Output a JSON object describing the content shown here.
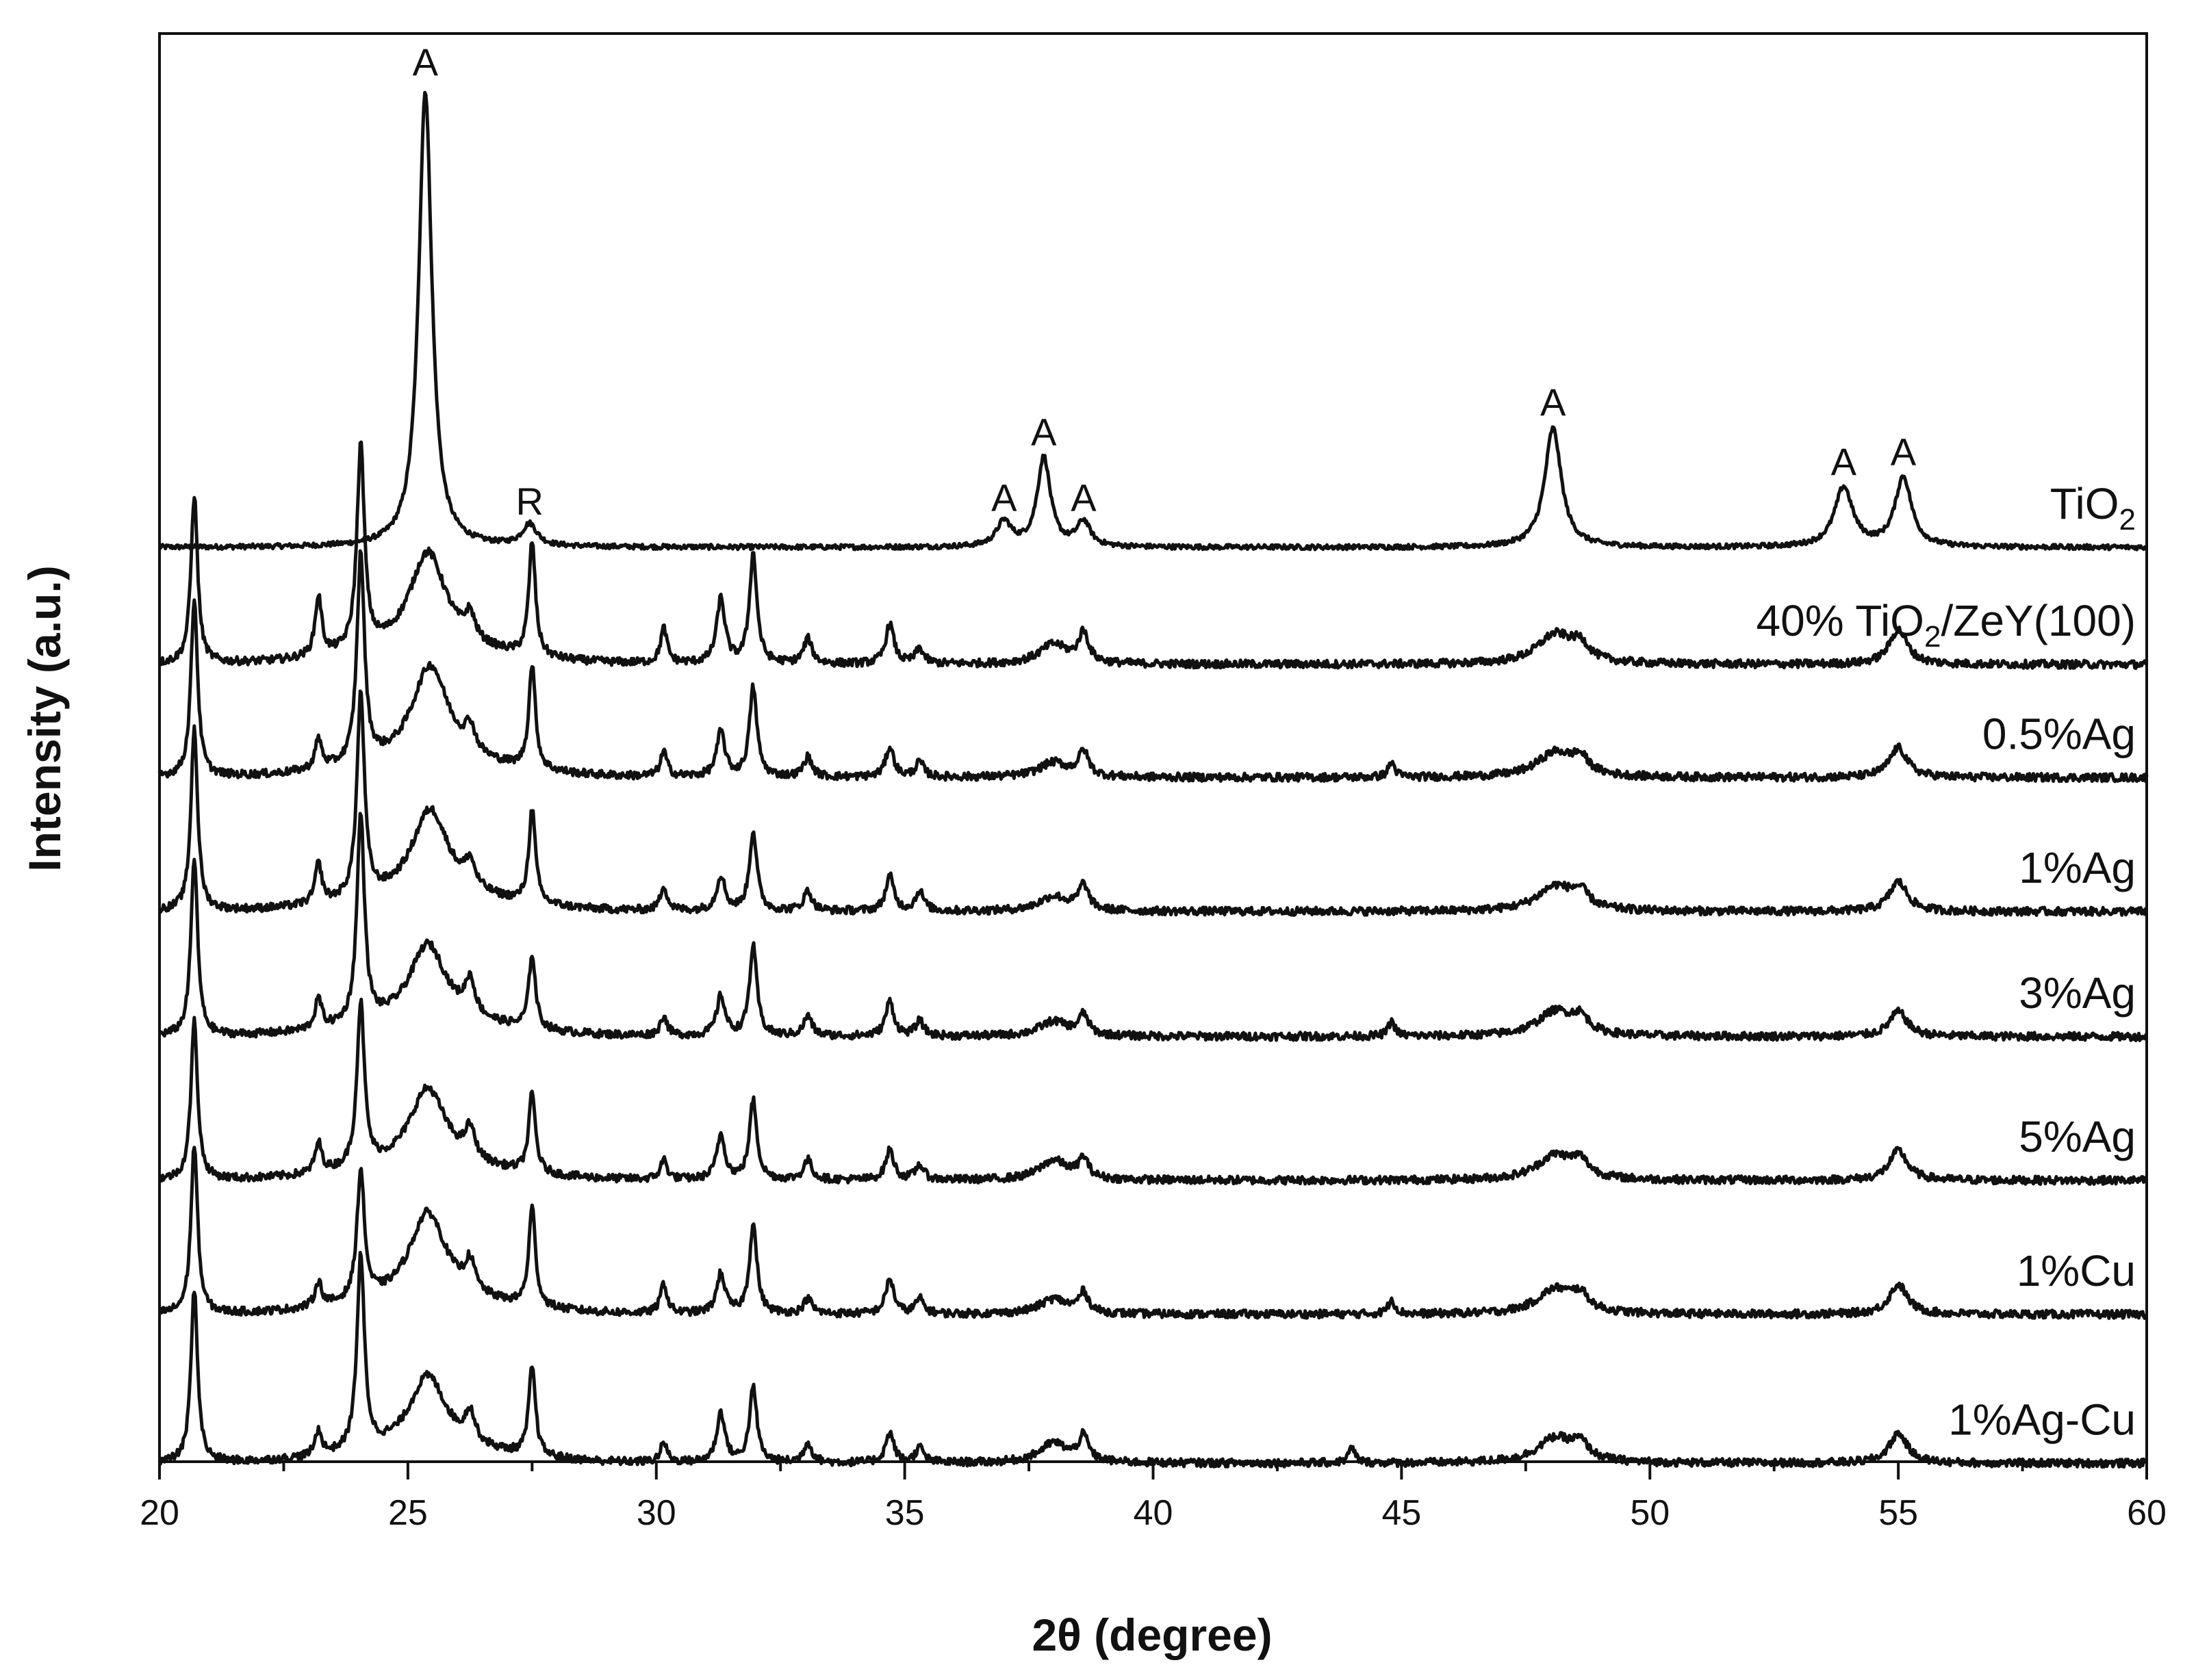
{
  "chart_data": {
    "type": "line",
    "xlabel": "2θ (degree)",
    "ylabel": "Intensity (a.u.)",
    "xlim": [
      20,
      60
    ],
    "xticks": [
      20,
      25,
      30,
      35,
      40,
      45,
      50,
      55,
      60
    ],
    "grid": false,
    "series": [
      {
        "name": "TiO",
        "name_sub": "2",
        "name_suffix": "",
        "color": "#111111",
        "baseline": 0,
        "peaks": [
          [
            25.35,
            46,
            0.16
          ],
          [
            27.45,
            2.2,
            0.18
          ],
          [
            37.0,
            2.5,
            0.18
          ],
          [
            37.8,
            9,
            0.16
          ],
          [
            38.6,
            2.5,
            0.16
          ],
          [
            48.05,
            12,
            0.2
          ],
          [
            53.9,
            6,
            0.22
          ],
          [
            55.1,
            7,
            0.2
          ]
        ]
      },
      {
        "name": "40% TiO",
        "name_sub": "2",
        "name_suffix": "/ZeY(100)",
        "color": "#111111",
        "baseline": 11.8,
        "peaks": [
          [
            20.7,
            17,
            0.08
          ],
          [
            23.2,
            6,
            0.08
          ],
          [
            24.05,
            20.5,
            0.09
          ],
          [
            25.4,
            10,
            0.45
          ],
          [
            26.25,
            2.5,
            0.12
          ],
          [
            27.5,
            11.5,
            0.08
          ],
          [
            30.15,
            3.5,
            0.08
          ],
          [
            31.3,
            6.5,
            0.1
          ],
          [
            31.95,
            11,
            0.09
          ],
          [
            33.05,
            2.5,
            0.1
          ],
          [
            34.7,
            4,
            0.1
          ],
          [
            35.3,
            1.5,
            0.1
          ],
          [
            38.0,
            2,
            0.35
          ],
          [
            38.6,
            3,
            0.12
          ],
          [
            48.1,
            3,
            0.45
          ],
          [
            48.6,
            1.5,
            0.2
          ],
          [
            55.0,
            3.5,
            0.22
          ]
        ]
      },
      {
        "name": "0.5%Ag",
        "name_sub": "",
        "name_suffix": "",
        "color": "#111111",
        "baseline": 23.2,
        "peaks": [
          [
            20.7,
            18,
            0.08
          ],
          [
            23.2,
            3,
            0.08
          ],
          [
            24.05,
            21,
            0.09
          ],
          [
            25.45,
            10,
            0.45
          ],
          [
            26.25,
            2.5,
            0.12
          ],
          [
            27.5,
            10.5,
            0.08
          ],
          [
            30.15,
            2.5,
            0.08
          ],
          [
            31.3,
            4.5,
            0.1
          ],
          [
            31.95,
            9,
            0.09
          ],
          [
            33.05,
            2,
            0.1
          ],
          [
            34.7,
            3,
            0.1
          ],
          [
            35.3,
            1.5,
            0.1
          ],
          [
            38.0,
            1.5,
            0.35
          ],
          [
            38.6,
            2.5,
            0.12
          ],
          [
            44.8,
            1.5,
            0.08
          ],
          [
            48.1,
            2.5,
            0.45
          ],
          [
            48.6,
            1.5,
            0.2
          ],
          [
            55.0,
            3,
            0.22
          ]
        ]
      },
      {
        "name": "1%Ag",
        "name_sub": "",
        "name_suffix": "",
        "color": "#111111",
        "baseline": 36.7,
        "peaks": [
          [
            20.7,
            18.5,
            0.08
          ],
          [
            23.2,
            4,
            0.08
          ],
          [
            24.05,
            20.5,
            0.09
          ],
          [
            25.45,
            9,
            0.45
          ],
          [
            26.25,
            2.5,
            0.12
          ],
          [
            27.5,
            9.5,
            0.08
          ],
          [
            30.15,
            2.5,
            0.08
          ],
          [
            31.3,
            3.5,
            0.1
          ],
          [
            31.95,
            8,
            0.09
          ],
          [
            33.05,
            2,
            0.1
          ],
          [
            34.7,
            3.5,
            0.1
          ],
          [
            35.3,
            2,
            0.1
          ],
          [
            38.0,
            1.5,
            0.35
          ],
          [
            38.6,
            2.5,
            0.12
          ],
          [
            48.1,
            2.5,
            0.45
          ],
          [
            48.6,
            1.5,
            0.2
          ],
          [
            55.0,
            3,
            0.22
          ]
        ]
      },
      {
        "name": "3%Ag",
        "name_sub": "",
        "name_suffix": "",
        "color": "#111111",
        "baseline": 49.3,
        "peaks": [
          [
            20.7,
            18,
            0.08
          ],
          [
            23.2,
            3,
            0.08
          ],
          [
            24.05,
            21,
            0.09
          ],
          [
            25.4,
            8,
            0.45
          ],
          [
            26.25,
            3.5,
            0.12
          ],
          [
            27.5,
            7.5,
            0.08
          ],
          [
            30.15,
            2,
            0.08
          ],
          [
            31.3,
            4,
            0.1
          ],
          [
            31.95,
            9,
            0.09
          ],
          [
            33.05,
            2,
            0.1
          ],
          [
            34.7,
            3.5,
            0.1
          ],
          [
            35.3,
            1.5,
            0.1
          ],
          [
            38.0,
            1.5,
            0.35
          ],
          [
            38.6,
            2,
            0.12
          ],
          [
            44.8,
            1.5,
            0.08
          ],
          [
            48.1,
            2.5,
            0.45
          ],
          [
            48.6,
            1.5,
            0.2
          ],
          [
            55.0,
            2.5,
            0.22
          ]
        ]
      },
      {
        "name": "5%Ag",
        "name_sub": "",
        "name_suffix": "",
        "color": "#111111",
        "baseline": 63.8,
        "peaks": [
          [
            20.7,
            16,
            0.08
          ],
          [
            23.2,
            3,
            0.08
          ],
          [
            24.05,
            16.5,
            0.09
          ],
          [
            25.4,
            8,
            0.45
          ],
          [
            26.25,
            3,
            0.12
          ],
          [
            27.5,
            8,
            0.08
          ],
          [
            30.15,
            2,
            0.08
          ],
          [
            31.3,
            4.5,
            0.1
          ],
          [
            31.95,
            8,
            0.09
          ],
          [
            33.05,
            2,
            0.1
          ],
          [
            34.7,
            3,
            0.1
          ],
          [
            35.3,
            1.5,
            0.1
          ],
          [
            38.0,
            2,
            0.35
          ],
          [
            38.6,
            2,
            0.12
          ],
          [
            48.1,
            2.5,
            0.45
          ],
          [
            48.6,
            1.5,
            0.2
          ],
          [
            55.0,
            3,
            0.22
          ]
        ]
      },
      {
        "name": "1%Cu",
        "name_sub": "",
        "name_suffix": "",
        "color": "#111111",
        "baseline": 77.3,
        "peaks": [
          [
            20.7,
            17,
            0.08
          ],
          [
            23.2,
            2.5,
            0.08
          ],
          [
            24.05,
            13,
            0.09
          ],
          [
            25.4,
            9,
            0.45
          ],
          [
            26.25,
            3,
            0.12
          ],
          [
            27.5,
            10,
            0.08
          ],
          [
            30.15,
            3,
            0.08
          ],
          [
            31.3,
            4,
            0.1
          ],
          [
            31.95,
            9,
            0.09
          ],
          [
            33.05,
            1.5,
            0.1
          ],
          [
            34.7,
            3.5,
            0.1
          ],
          [
            35.3,
            1.5,
            0.1
          ],
          [
            38.0,
            1.5,
            0.35
          ],
          [
            38.6,
            2,
            0.12
          ],
          [
            44.8,
            1.5,
            0.08
          ],
          [
            48.1,
            2.5,
            0.45
          ],
          [
            48.6,
            1.5,
            0.2
          ],
          [
            55.0,
            3,
            0.22
          ]
        ]
      },
      {
        "name": "1%Ag-Cu",
        "name_sub": "",
        "name_suffix": "",
        "color": "#111111",
        "baseline": 92.3,
        "peaks": [
          [
            20.7,
            17.5,
            0.08
          ],
          [
            23.2,
            2.5,
            0.08
          ],
          [
            24.05,
            19.5,
            0.09
          ],
          [
            25.4,
            7.5,
            0.45
          ],
          [
            26.25,
            3,
            0.12
          ],
          [
            27.5,
            9,
            0.08
          ],
          [
            30.15,
            2,
            0.08
          ],
          [
            31.3,
            5,
            0.1
          ],
          [
            31.95,
            7.5,
            0.09
          ],
          [
            33.05,
            2,
            0.1
          ],
          [
            34.7,
            3,
            0.1
          ],
          [
            35.3,
            1.5,
            0.1
          ],
          [
            38.0,
            2,
            0.35
          ],
          [
            38.6,
            2.5,
            0.12
          ],
          [
            44.0,
            1.5,
            0.08
          ],
          [
            48.1,
            2.5,
            0.45
          ],
          [
            48.6,
            1.5,
            0.2
          ],
          [
            55.0,
            3,
            0.22
          ]
        ]
      }
    ],
    "annotations": [
      {
        "text": "A",
        "x": 25.35,
        "y": 46.5
      },
      {
        "text": "R",
        "x": 27.45,
        "y": 2.2
      },
      {
        "text": "A",
        "x": 37.0,
        "y": 2.6
      },
      {
        "text": "A",
        "x": 37.8,
        "y": 9.2
      },
      {
        "text": "A",
        "x": 38.6,
        "y": 2.6
      },
      {
        "text": "A",
        "x": 48.05,
        "y": 12.2
      },
      {
        "text": "A",
        "x": 53.9,
        "y": 6.2
      },
      {
        "text": "A",
        "x": 55.1,
        "y": 7.2
      }
    ]
  }
}
